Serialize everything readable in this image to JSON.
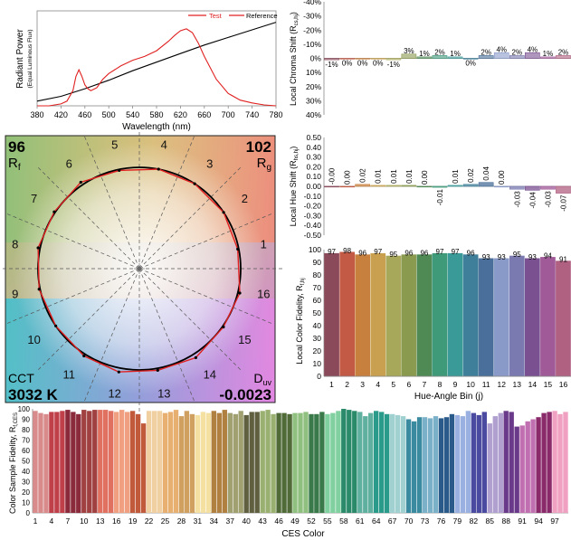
{
  "chart_data": [
    {
      "id": "spd",
      "type": "line",
      "xlabel": "Wavelength (nm)",
      "ylabel": "Radiant Power",
      "ylabel_sub": "(Equal Luminous Flux)",
      "x_ticks": [
        380,
        420,
        460,
        500,
        540,
        580,
        620,
        660,
        700,
        740,
        780
      ],
      "xlim": [
        380,
        780
      ],
      "ylim": [
        0,
        1
      ],
      "legend": {
        "placement": "top-right",
        "entries": [
          "Test",
          "Reference"
        ]
      },
      "series": [
        {
          "name": "Test",
          "color": "#e02020",
          "x": [
            380,
            400,
            420,
            430,
            440,
            445,
            450,
            455,
            460,
            465,
            470,
            480,
            490,
            500,
            520,
            540,
            560,
            580,
            600,
            610,
            620,
            630,
            640,
            650,
            660,
            680,
            700,
            720,
            740,
            760,
            780
          ],
          "y": [
            0.0,
            0.0,
            0.02,
            0.05,
            0.16,
            0.31,
            0.38,
            0.31,
            0.22,
            0.18,
            0.16,
            0.19,
            0.28,
            0.34,
            0.42,
            0.48,
            0.52,
            0.58,
            0.68,
            0.74,
            0.79,
            0.81,
            0.77,
            0.66,
            0.52,
            0.28,
            0.13,
            0.06,
            0.03,
            0.01,
            0.0
          ]
        },
        {
          "name": "Reference",
          "color": "#000000",
          "x": [
            380,
            420,
            460,
            500,
            540,
            580,
            620,
            660,
            700,
            740,
            780
          ],
          "y": [
            0.05,
            0.1,
            0.18,
            0.27,
            0.37,
            0.46,
            0.55,
            0.64,
            0.72,
            0.8,
            0.88
          ]
        }
      ]
    },
    {
      "id": "chroma_shift",
      "type": "bar",
      "ylabel": "Local Chroma Shift (R",
      "ylabel_sub": "cs,hj",
      "y_ticks": [
        "-40%",
        "-30%",
        "-20%",
        "-10%",
        "0%",
        "10%",
        "20%",
        "30%",
        "40%"
      ],
      "ylim": [
        -40,
        40
      ],
      "categories": [
        1,
        2,
        3,
        4,
        5,
        6,
        7,
        8,
        9,
        10,
        11,
        12,
        13,
        14,
        15,
        16
      ],
      "values": [
        -1,
        0,
        0,
        0,
        -1,
        3,
        1,
        2,
        1,
        0,
        2,
        4,
        2,
        4,
        1,
        2
      ],
      "labels": [
        "-1%",
        "0%",
        "0%",
        "0%",
        "-1%",
        "3%",
        "1%",
        "2%",
        "1%",
        "0%",
        "2%",
        "4%",
        "2%",
        "4%",
        "1%",
        "2%"
      ]
    },
    {
      "id": "hue_shift",
      "type": "bar",
      "ylabel": "Local Hue Shift (R",
      "ylabel_sub": "hs,hj",
      "y_ticks": [
        "0.50",
        "0.40",
        "0.30",
        "0.20",
        "0.10",
        "0.00",
        "-0.10",
        "-0.20",
        "-0.30",
        "-0.40",
        "-0.50"
      ],
      "ylim": [
        -0.5,
        0.5
      ],
      "categories": [
        1,
        2,
        3,
        4,
        5,
        6,
        7,
        8,
        9,
        10,
        11,
        12,
        13,
        14,
        15,
        16
      ],
      "values": [
        -0.0,
        0.0,
        0.02,
        0.01,
        0.01,
        0.01,
        0.0,
        -0.01,
        0.01,
        0.02,
        0.04,
        0.0,
        -0.03,
        -0.04,
        -0.03,
        -0.07
      ],
      "labels": [
        "-0.00",
        "0.00",
        "0.02",
        "0.01",
        "0.01",
        "0.01",
        "0.00",
        "-0.01",
        "0.01",
        "0.02",
        "0.04",
        "0.00",
        "-0.03",
        "-0.04",
        "-0.03",
        "-0.07"
      ]
    },
    {
      "id": "local_fidelity",
      "type": "bar",
      "ylabel": "Local Color Fidelity, R",
      "ylabel_sub": "f,hj",
      "xlabel": "Hue-Angle Bin (j)",
      "y_ticks": [
        0,
        10,
        20,
        30,
        40,
        50,
        60,
        70,
        80,
        90,
        100
      ],
      "ylim": [
        0,
        100
      ],
      "categories": [
        1,
        2,
        3,
        4,
        5,
        6,
        7,
        8,
        9,
        10,
        11,
        12,
        13,
        14,
        15,
        16
      ],
      "values": [
        97,
        98,
        96,
        97,
        95,
        96,
        96,
        97,
        97,
        96,
        93,
        93,
        95,
        93,
        94,
        91
      ],
      "labels": [
        "97",
        "98",
        "96",
        "97",
        "95",
        "96",
        "96",
        "97",
        "97",
        "96",
        "93",
        "93",
        "95",
        "93",
        "94",
        "91"
      ]
    },
    {
      "id": "ces_fidelity",
      "type": "bar",
      "ylabel": "Color Sample Fidelity, R",
      "ylabel_sub": "f,CES",
      "xlabel": "CES Color",
      "x_ticks": [
        1,
        4,
        7,
        10,
        13,
        16,
        19,
        22,
        25,
        28,
        31,
        34,
        37,
        40,
        43,
        46,
        49,
        52,
        55,
        58,
        61,
        64,
        67,
        70,
        73,
        76,
        79,
        82,
        85,
        88,
        91,
        94,
        97
      ],
      "y_ticks": [
        0,
        10,
        20,
        30,
        40,
        50,
        60,
        70,
        80,
        90,
        100
      ],
      "ylim": [
        0,
        100
      ],
      "values": [
        98,
        96,
        95,
        97,
        97,
        98,
        99,
        97,
        95,
        99,
        98,
        99,
        99,
        99,
        98,
        97,
        99,
        97,
        98,
        95,
        86,
        98,
        98,
        98,
        96,
        97,
        99,
        93,
        98,
        95,
        94,
        97,
        96,
        98,
        96,
        99,
        96,
        95,
        98,
        94,
        97,
        97,
        98,
        99,
        95,
        96,
        96,
        95,
        96,
        96,
        97,
        95,
        95,
        97,
        95,
        96,
        98,
        100,
        99,
        98,
        97,
        93,
        96,
        98,
        97,
        95,
        95,
        94,
        93,
        90,
        88,
        92,
        92,
        91,
        93,
        91,
        92,
        95,
        94,
        93,
        98,
        96,
        94,
        97,
        86,
        93,
        96,
        98,
        97,
        83,
        84,
        88,
        90,
        92,
        96,
        97,
        98,
        95,
        97
      ]
    },
    {
      "id": "vector_graphic",
      "type": "other",
      "rf_label": "R",
      "rf_sub": "f",
      "rf": "96",
      "rg_label": "R",
      "rg_sub": "g",
      "rg": "102",
      "cct_label": "CCT",
      "cct": "3032 K",
      "duv_label": "D",
      "duv_sub": "uv",
      "duv": "-0.0023",
      "bin_labels": [
        "1",
        "2",
        "3",
        "4",
        "5",
        "6",
        "7",
        "8",
        "9",
        "10",
        "11",
        "12",
        "13",
        "14",
        "15",
        "16"
      ],
      "test_color": "#e02020",
      "reference_color": "#000000"
    }
  ]
}
